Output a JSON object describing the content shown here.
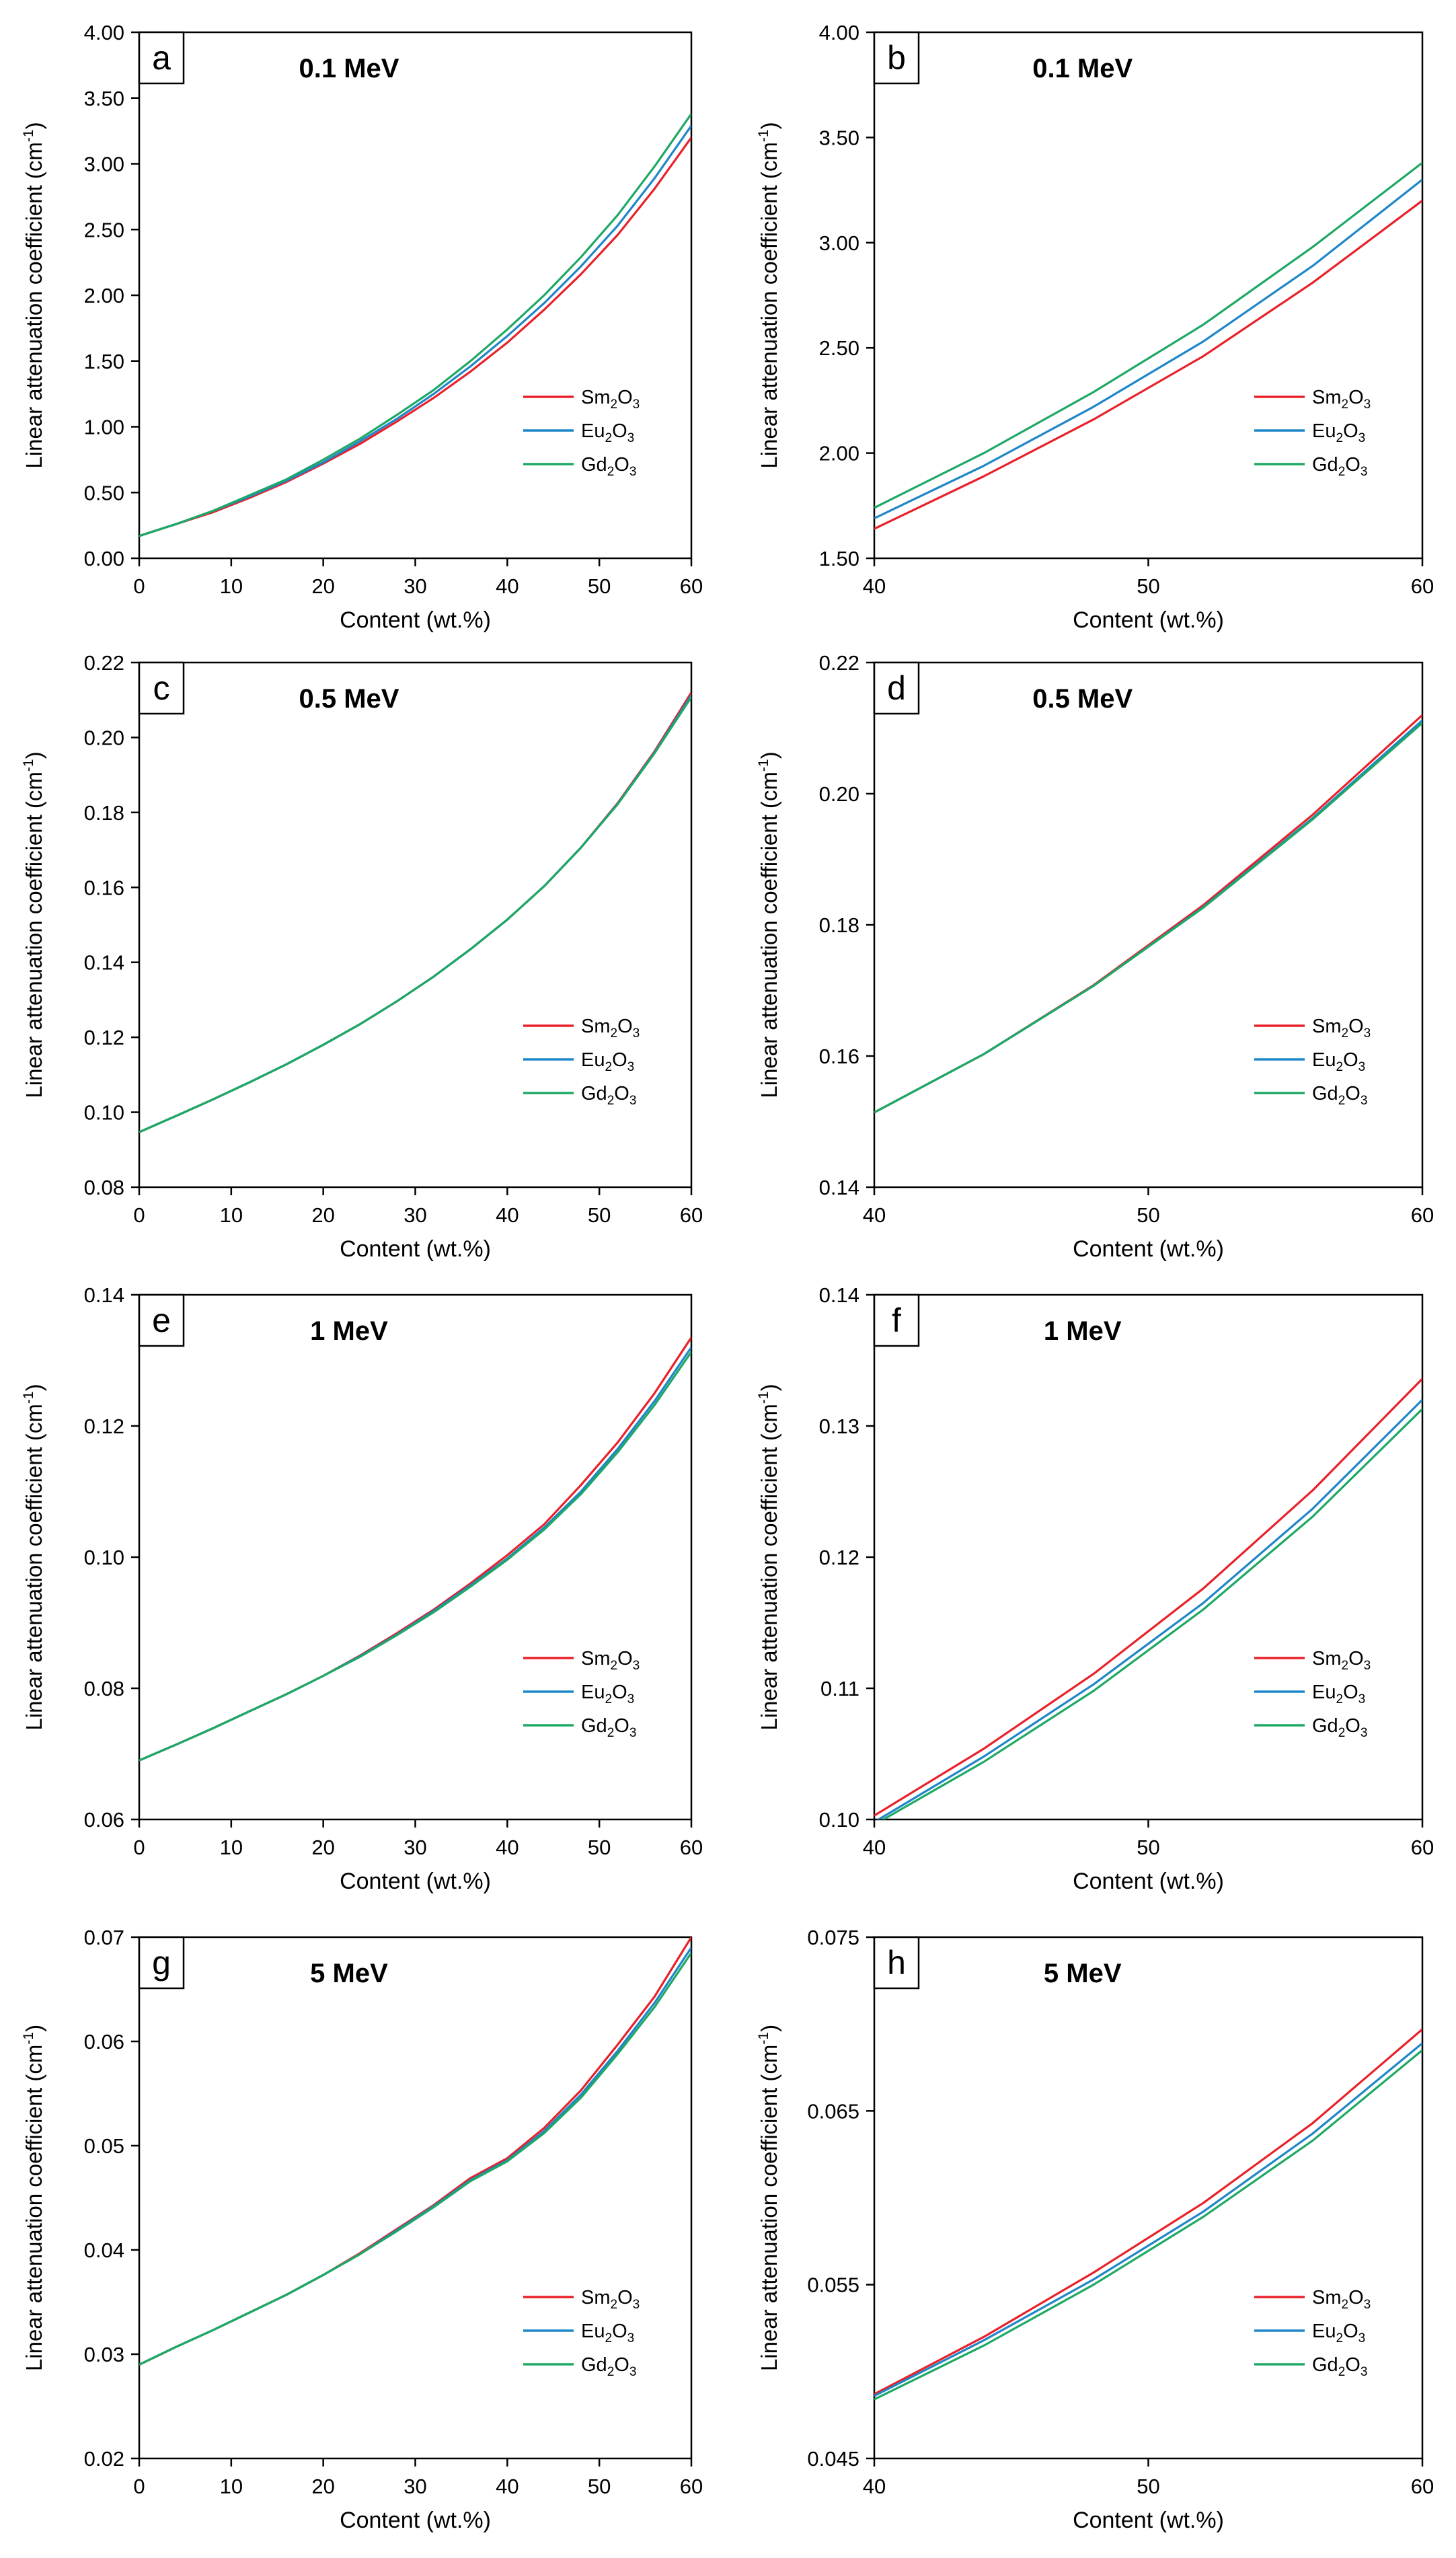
{
  "figure": {
    "ylabel_main": "Linear attenuation coefficient (cm",
    "ylabel_sup": "-1",
    "ylabel_end": ")",
    "legend_order": [
      "Sm2O3",
      "Eu2O3",
      "Gd2O3"
    ],
    "legend_text": {
      "Sm2O3": {
        "a": "Sm",
        "b": "2",
        "c": "O",
        "d": "3"
      },
      "Eu2O3": {
        "a": "Eu",
        "b": "2",
        "c": "O",
        "d": "3"
      },
      "Gd2O3": {
        "a": "Gd",
        "b": "2",
        "c": "O",
        "d": "3"
      }
    },
    "colors": {
      "Sm2O3": "#e8212a",
      "Eu2O3": "#1f86c8",
      "Gd2O3": "#1ea865"
    }
  },
  "chart_data": [
    {
      "panel": "a",
      "type": "line",
      "title": "0.1 MeV",
      "xlabel": "Content (wt.%)",
      "xlim": [
        0,
        60
      ],
      "xticks": [
        "0",
        "10",
        "20",
        "30",
        "40",
        "50",
        "60"
      ],
      "ylim": [
        0,
        4
      ],
      "yticks": [
        "0.00",
        "0.50",
        "1.00",
        "1.50",
        "2.00",
        "2.50",
        "3.00",
        "3.50",
        "4.00"
      ],
      "x": [
        0,
        4,
        8,
        12,
        16,
        20,
        24,
        28,
        32,
        36,
        40,
        44,
        48,
        52,
        56,
        60
      ],
      "series": [
        {
          "name": "Sm2O3",
          "values": [
            0.17,
            0.26,
            0.35,
            0.46,
            0.58,
            0.72,
            0.87,
            1.04,
            1.22,
            1.42,
            1.64,
            1.89,
            2.16,
            2.46,
            2.81,
            3.2
          ]
        },
        {
          "name": "Eu2O3",
          "values": [
            0.17,
            0.26,
            0.36,
            0.47,
            0.59,
            0.73,
            0.89,
            1.06,
            1.25,
            1.46,
            1.69,
            1.94,
            2.22,
            2.53,
            2.89,
            3.29
          ]
        },
        {
          "name": "Gd2O3",
          "values": [
            0.17,
            0.26,
            0.36,
            0.48,
            0.6,
            0.75,
            0.91,
            1.09,
            1.28,
            1.5,
            1.74,
            2.0,
            2.29,
            2.61,
            2.98,
            3.38
          ]
        }
      ]
    },
    {
      "panel": "b",
      "type": "line",
      "title": "0.1 MeV",
      "xlabel": "Content (wt.%)",
      "xlim": [
        40,
        60
      ],
      "xticks": [
        "40",
        "50",
        "60"
      ],
      "ylim": [
        1.5,
        4
      ],
      "yticks": [
        "1.50",
        "2.00",
        "2.50",
        "3.00",
        "3.50",
        "4.00"
      ],
      "x": [
        40,
        44,
        48,
        52,
        56,
        60
      ],
      "series": [
        {
          "name": "Sm2O3",
          "values": [
            1.64,
            1.89,
            2.16,
            2.46,
            2.81,
            3.2
          ]
        },
        {
          "name": "Eu2O3",
          "values": [
            1.69,
            1.94,
            2.22,
            2.53,
            2.89,
            3.3
          ]
        },
        {
          "name": "Gd2O3",
          "values": [
            1.74,
            2.0,
            2.29,
            2.61,
            2.98,
            3.38
          ]
        }
      ]
    },
    {
      "panel": "c",
      "type": "line",
      "title": "0.5 MeV",
      "xlabel": "Content (wt.%)",
      "xlim": [
        0,
        60
      ],
      "xticks": [
        "0",
        "10",
        "20",
        "30",
        "40",
        "50",
        "60"
      ],
      "ylim": [
        0.08,
        0.22
      ],
      "yticks": [
        "0.08",
        "0.10",
        "0.12",
        "0.14",
        "0.16",
        "0.18",
        "0.20",
        "0.22"
      ],
      "x": [
        0,
        4,
        8,
        12,
        16,
        20,
        24,
        28,
        32,
        36,
        40,
        44,
        48,
        52,
        56,
        60
      ],
      "series": [
        {
          "name": "Sm2O3",
          "values": [
            0.0947,
            0.099,
            0.1034,
            0.108,
            0.1128,
            0.118,
            0.1235,
            0.1296,
            0.1362,
            0.1435,
            0.1514,
            0.1603,
            0.1706,
            0.1825,
            0.1963,
            0.212
          ]
        },
        {
          "name": "Eu2O3",
          "values": [
            0.0947,
            0.099,
            0.1034,
            0.108,
            0.1128,
            0.118,
            0.1235,
            0.1296,
            0.1362,
            0.1435,
            0.1514,
            0.1603,
            0.1706,
            0.1823,
            0.196,
            0.2113
          ]
        },
        {
          "name": "Gd2O3",
          "values": [
            0.0947,
            0.099,
            0.1034,
            0.108,
            0.1128,
            0.118,
            0.1235,
            0.1296,
            0.1362,
            0.1435,
            0.1514,
            0.1603,
            0.1706,
            0.1822,
            0.1958,
            0.2108
          ]
        }
      ]
    },
    {
      "panel": "d",
      "type": "line",
      "title": "0.5 MeV",
      "xlabel": "Content (wt.%)",
      "xlim": [
        40,
        60
      ],
      "xticks": [
        "40",
        "50",
        "60"
      ],
      "ylim": [
        0.14,
        0.22
      ],
      "yticks": [
        "0.14",
        "0.16",
        "0.18",
        "0.20",
        "0.22"
      ],
      "x": [
        40,
        44,
        48,
        52,
        56,
        60
      ],
      "series": [
        {
          "name": "Sm2O3",
          "values": [
            0.1514,
            0.1603,
            0.1708,
            0.183,
            0.1968,
            0.212
          ]
        },
        {
          "name": "Eu2O3",
          "values": [
            0.1514,
            0.1603,
            0.1707,
            0.1827,
            0.1963,
            0.2112
          ]
        },
        {
          "name": "Gd2O3",
          "values": [
            0.1514,
            0.1603,
            0.1707,
            0.1826,
            0.1961,
            0.2108
          ]
        }
      ]
    },
    {
      "panel": "e",
      "type": "line",
      "title": "1 MeV",
      "xlabel": "Content (wt.%)",
      "xlim": [
        0,
        60
      ],
      "xticks": [
        "0",
        "10",
        "20",
        "30",
        "40",
        "50",
        "60"
      ],
      "ylim": [
        0.06,
        0.14
      ],
      "yticks": [
        "0.06",
        "0.08",
        "0.10",
        "0.12",
        "0.14"
      ],
      "x": [
        0,
        4,
        8,
        12,
        16,
        20,
        24,
        28,
        32,
        36,
        40,
        44,
        48,
        52,
        56,
        60
      ],
      "series": [
        {
          "name": "Sm2O3",
          "values": [
            0.069,
            0.0714,
            0.0739,
            0.0765,
            0.0791,
            0.0819,
            0.085,
            0.0884,
            0.092,
            0.096,
            0.1003,
            0.105,
            0.111,
            0.1175,
            0.125,
            0.1335
          ]
        },
        {
          "name": "Eu2O3",
          "values": [
            0.069,
            0.0714,
            0.0739,
            0.0765,
            0.0791,
            0.0819,
            0.0849,
            0.0882,
            0.0918,
            0.0957,
            0.0998,
            0.1045,
            0.11,
            0.1165,
            0.1238,
            0.132
          ]
        },
        {
          "name": "Gd2O3",
          "values": [
            0.069,
            0.0714,
            0.0739,
            0.0765,
            0.0791,
            0.0819,
            0.0848,
            0.0881,
            0.0916,
            0.0955,
            0.0996,
            0.1042,
            0.1096,
            0.116,
            0.1232,
            0.1313
          ]
        }
      ]
    },
    {
      "panel": "f",
      "type": "line",
      "title": "1 MeV",
      "xlabel": "Content (wt.%)",
      "xlim": [
        40,
        60
      ],
      "xticks": [
        "40",
        "50",
        "60"
      ],
      "ylim": [
        0.1,
        0.14
      ],
      "yticks": [
        "0.10",
        "0.11",
        "0.12",
        "0.13",
        "0.14"
      ],
      "x": [
        40,
        44,
        48,
        52,
        56,
        60
      ],
      "series": [
        {
          "name": "Sm2O3",
          "values": [
            0.1003,
            0.1054,
            0.1111,
            0.1176,
            0.1251,
            0.1336
          ]
        },
        {
          "name": "Eu2O3",
          "values": [
            0.0998,
            0.1048,
            0.1103,
            0.1165,
            0.1237,
            0.132
          ]
        },
        {
          "name": "Gd2O3",
          "values": [
            0.0996,
            0.1044,
            0.1098,
            0.116,
            0.1231,
            0.1313
          ]
        }
      ]
    },
    {
      "panel": "g",
      "type": "line",
      "title": "5 MeV",
      "xlabel": "Content (wt.%)",
      "xlim": [
        0,
        60
      ],
      "xticks": [
        "0",
        "10",
        "20",
        "30",
        "40",
        "50",
        "60"
      ],
      "ylim": [
        0.02,
        0.07
      ],
      "yticks": [
        "0.02",
        "0.03",
        "0.04",
        "0.05",
        "0.06",
        "0.07"
      ],
      "x": [
        0,
        4,
        8,
        12,
        16,
        20,
        24,
        28,
        32,
        36,
        40,
        44,
        48,
        52,
        56,
        60
      ],
      "series": [
        {
          "name": "Sm2O3",
          "values": [
            0.029,
            0.0307,
            0.0323,
            0.034,
            0.0357,
            0.0376,
            0.0397,
            0.042,
            0.0443,
            0.0469,
            0.0488,
            0.0517,
            0.0553,
            0.0597,
            0.0643,
            0.07
          ]
        },
        {
          "name": "Eu2O3",
          "values": [
            0.029,
            0.0307,
            0.0323,
            0.034,
            0.0357,
            0.0376,
            0.0396,
            0.0419,
            0.0442,
            0.0467,
            0.0486,
            0.0514,
            0.0549,
            0.0591,
            0.0637,
            0.069
          ]
        },
        {
          "name": "Gd2O3",
          "values": [
            0.029,
            0.0307,
            0.0323,
            0.034,
            0.0357,
            0.0376,
            0.0396,
            0.0418,
            0.0441,
            0.0466,
            0.0485,
            0.0512,
            0.0546,
            0.0588,
            0.0633,
            0.0685
          ]
        }
      ]
    },
    {
      "panel": "h",
      "type": "line",
      "title": "5 MeV",
      "xlabel": "Content (wt.%)",
      "xlim": [
        40,
        60
      ],
      "xticks": [
        "40",
        "50",
        "60"
      ],
      "ylim": [
        0.045,
        0.075
      ],
      "yticks": [
        "0.045",
        "0.055",
        "0.065",
        "0.075"
      ],
      "x": [
        40,
        44,
        48,
        52,
        56,
        60
      ],
      "series": [
        {
          "name": "Sm2O3",
          "values": [
            0.0487,
            0.052,
            0.0557,
            0.0597,
            0.0643,
            0.0697
          ]
        },
        {
          "name": "Eu2O3",
          "values": [
            0.0486,
            0.0518,
            0.0553,
            0.0592,
            0.0637,
            0.0689
          ]
        },
        {
          "name": "Gd2O3",
          "values": [
            0.0484,
            0.0515,
            0.055,
            0.0589,
            0.0633,
            0.0685
          ]
        }
      ]
    }
  ]
}
